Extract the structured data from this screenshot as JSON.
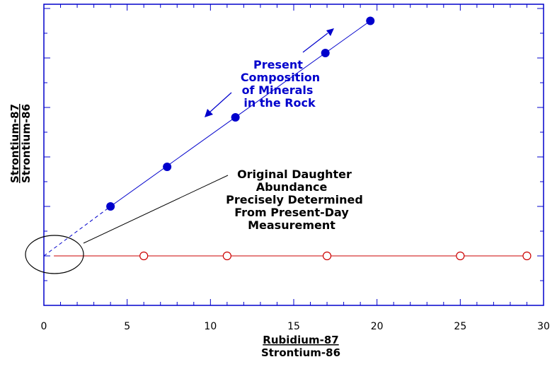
{
  "chart_data": {
    "type": "scatter",
    "xlabel": [
      "Rubidium-87",
      "Strontium-86"
    ],
    "ylabel": [
      "Strontium-87",
      "Strontium-86"
    ],
    "xlim": [
      0,
      30
    ],
    "x_ticks": [
      "0",
      "5",
      "10",
      "15",
      "20",
      "25",
      "30"
    ],
    "y_tick_count": 9,
    "grid": false,
    "series": [
      {
        "marker": "filled-circle",
        "color": "#0000cc",
        "points": [
          [
            4,
            1.0
          ],
          [
            7.4,
            1.8
          ],
          [
            11.5,
            2.8
          ],
          [
            16.9,
            4.1
          ],
          [
            19.6,
            4.75
          ]
        ]
      },
      {
        "marker": "open-circle",
        "color": "#cc0000",
        "points": [
          [
            6,
            0
          ],
          [
            11,
            0
          ],
          [
            17,
            0
          ],
          [
            25,
            0
          ],
          [
            29,
            0
          ]
        ]
      }
    ],
    "annotations": {
      "present": [
        "Present",
        "Composition",
        "of Minerals",
        "in the Rock"
      ],
      "original": [
        "Original Daughter",
        "Abundance",
        "Precisely Determined",
        "From Present-Day",
        "Measurement"
      ]
    }
  }
}
